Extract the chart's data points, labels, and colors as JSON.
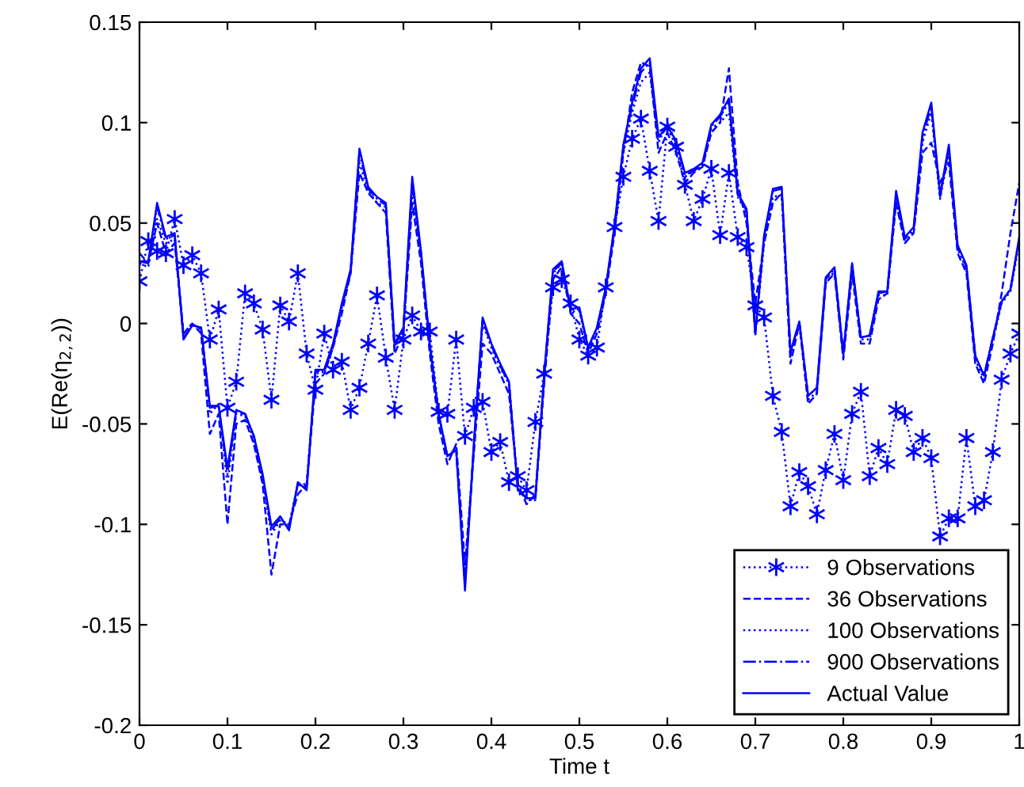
{
  "chart_data": {
    "type": "line",
    "xlabel": "Time t",
    "ylabel": "E(Re(η$_{2,2}$))",
    "xlim": [
      0,
      1
    ],
    "ylim": [
      -0.2,
      0.15
    ],
    "xticks": [
      0,
      0.1,
      0.2,
      0.3,
      0.4,
      0.5,
      0.6,
      0.7,
      0.8,
      0.9,
      1
    ],
    "yticks": [
      -0.2,
      -0.15,
      -0.1,
      -0.05,
      0,
      0.05,
      0.1,
      0.15
    ],
    "grid": false,
    "legend": "bottom right",
    "x": [
      0,
      0.01,
      0.02,
      0.03,
      0.04,
      0.05,
      0.06,
      0.07,
      0.08,
      0.09,
      0.1,
      0.11,
      0.12,
      0.13,
      0.14,
      0.15,
      0.16,
      0.17,
      0.18,
      0.19,
      0.2,
      0.21,
      0.22,
      0.23,
      0.24,
      0.25,
      0.26,
      0.27,
      0.28,
      0.29,
      0.3,
      0.31,
      0.32,
      0.33,
      0.34,
      0.35,
      0.36,
      0.37,
      0.38,
      0.39,
      0.4,
      0.41,
      0.42,
      0.43,
      0.44,
      0.45,
      0.46,
      0.47,
      0.48,
      0.49,
      0.5,
      0.51,
      0.52,
      0.53,
      0.54,
      0.55,
      0.56,
      0.57,
      0.58,
      0.59,
      0.6,
      0.61,
      0.62,
      0.63,
      0.64,
      0.65,
      0.66,
      0.67,
      0.68,
      0.69,
      0.7,
      0.71,
      0.72,
      0.73,
      0.74,
      0.75,
      0.76,
      0.77,
      0.78,
      0.79,
      0.8,
      0.81,
      0.82,
      0.83,
      0.84,
      0.85,
      0.86,
      0.87,
      0.88,
      0.89,
      0.9,
      0.91,
      0.92,
      0.93,
      0.94,
      0.95,
      0.96,
      0.97,
      0.98,
      0.99,
      1
    ],
    "series": [
      {
        "name": "9 Observations",
        "color": "#0000ff",
        "marker": "cross",
        "line_style": "dotted",
        "values": [
          0.021,
          0.041,
          0.036,
          0.035,
          0.052,
          0.029,
          0.034,
          0.025,
          -0.008,
          0.007,
          -0.042,
          -0.029,
          0.015,
          0.01,
          -0.003,
          -0.038,
          0.009,
          0.001,
          0.025,
          -0.015,
          -0.033,
          -0.005,
          -0.023,
          -0.019,
          -0.043,
          -0.032,
          -0.01,
          0.014,
          -0.017,
          -0.043,
          -0.008,
          0.004,
          -0.004,
          -0.004,
          -0.044,
          -0.045,
          -0.008,
          -0.056,
          -0.042,
          -0.039,
          -0.064,
          -0.059,
          -0.079,
          -0.076,
          -0.083,
          -0.049,
          -0.025,
          0.018,
          0.022,
          0.01,
          -0.008,
          -0.016,
          -0.012,
          0.018,
          0.048,
          0.073,
          0.092,
          0.102,
          0.076,
          0.051,
          0.098,
          0.088,
          0.069,
          0.051,
          0.062,
          0.077,
          0.044,
          0.075,
          0.043,
          0.038,
          0.009,
          0.003,
          -0.036,
          -0.054,
          -0.091,
          -0.074,
          -0.081,
          -0.095,
          -0.073,
          -0.055,
          -0.078,
          -0.045,
          -0.034,
          -0.076,
          -0.062,
          -0.07,
          -0.043,
          -0.046,
          -0.064,
          -0.057,
          -0.067,
          -0.106,
          -0.097,
          -0.097,
          -0.057,
          -0.091,
          -0.088,
          -0.064,
          -0.028,
          -0.015,
          -0.005
        ]
      },
      {
        "name": "36 Observations",
        "color": "#0000ff",
        "marker": "none",
        "line_style": "dashed",
        "values": [
          0.035,
          0.03,
          0.05,
          0.035,
          0.04,
          -0.005,
          0.0,
          -0.005,
          -0.055,
          -0.045,
          -0.1,
          -0.05,
          -0.048,
          -0.06,
          -0.08,
          -0.125,
          -0.1,
          -0.1,
          -0.085,
          -0.08,
          -0.03,
          -0.025,
          -0.012,
          0.005,
          0.025,
          0.075,
          0.065,
          0.06,
          0.055,
          -0.015,
          -0.005,
          0.06,
          0.03,
          -0.015,
          -0.05,
          -0.07,
          -0.06,
          -0.12,
          -0.065,
          -0.01,
          -0.015,
          -0.025,
          -0.035,
          -0.08,
          -0.09,
          -0.085,
          -0.03,
          0.022,
          0.028,
          0.005,
          0.0,
          -0.015,
          -0.005,
          0.015,
          0.045,
          0.085,
          0.115,
          0.13,
          0.128,
          0.085,
          0.095,
          0.085,
          0.07,
          0.075,
          0.078,
          0.095,
          0.1,
          0.127,
          0.07,
          0.05,
          0.01,
          0.04,
          0.06,
          0.065,
          -0.02,
          0.0,
          -0.04,
          -0.035,
          0.02,
          0.025,
          -0.018,
          0.025,
          -0.01,
          -0.01,
          0.012,
          0.015,
          0.06,
          0.04,
          0.045,
          0.085,
          0.09,
          0.07,
          0.08,
          0.035,
          0.025,
          -0.02,
          -0.03,
          -0.01,
          0.015,
          0.045,
          0.07
        ]
      },
      {
        "name": "100 Observations",
        "color": "#0000ff",
        "marker": "none",
        "line_style": "dotted",
        "values": [
          0.03,
          0.028,
          0.052,
          0.04,
          0.042,
          -0.005,
          0.0,
          -0.003,
          -0.045,
          -0.04,
          -0.08,
          -0.045,
          -0.046,
          -0.058,
          -0.078,
          -0.105,
          -0.098,
          -0.1,
          -0.08,
          -0.08,
          -0.025,
          -0.024,
          -0.012,
          0.008,
          0.025,
          0.08,
          0.066,
          0.06,
          0.058,
          -0.012,
          -0.004,
          0.065,
          0.033,
          -0.012,
          -0.046,
          -0.066,
          -0.062,
          -0.125,
          -0.062,
          0.0,
          -0.012,
          -0.022,
          -0.03,
          -0.08,
          -0.088,
          -0.088,
          -0.028,
          0.025,
          0.03,
          0.006,
          0.006,
          -0.013,
          -0.003,
          0.016,
          0.047,
          0.085,
          0.105,
          0.12,
          0.125,
          0.09,
          0.1,
          0.09,
          0.073,
          0.076,
          0.078,
          0.097,
          0.1,
          0.105,
          0.063,
          0.055,
          -0.006,
          0.04,
          0.063,
          0.064,
          -0.016,
          0.0,
          -0.038,
          -0.034,
          0.02,
          0.026,
          -0.016,
          0.028,
          -0.008,
          -0.008,
          0.014,
          0.014,
          0.062,
          0.04,
          0.046,
          0.09,
          0.105,
          0.062,
          0.085,
          0.037,
          0.027,
          -0.018,
          -0.028,
          -0.009,
          0.01,
          0.016,
          0.04
        ]
      },
      {
        "name": "900 Observations",
        "color": "#0000ff",
        "marker": "none",
        "line_style": "dashdot",
        "values": [
          0.031,
          0.03,
          0.058,
          0.042,
          0.044,
          -0.007,
          -0.001,
          -0.002,
          -0.042,
          -0.041,
          -0.075,
          -0.044,
          -0.045,
          -0.056,
          -0.076,
          -0.103,
          -0.097,
          -0.102,
          -0.08,
          -0.082,
          -0.024,
          -0.023,
          -0.011,
          0.009,
          0.026,
          0.085,
          0.067,
          0.062,
          0.059,
          -0.011,
          -0.003,
          0.07,
          0.035,
          -0.011,
          -0.045,
          -0.066,
          -0.063,
          -0.13,
          -0.061,
          0.002,
          -0.011,
          -0.021,
          -0.03,
          -0.082,
          -0.087,
          -0.087,
          -0.026,
          0.026,
          0.03,
          0.007,
          0.007,
          -0.012,
          -0.002,
          0.017,
          0.048,
          0.088,
          0.108,
          0.125,
          0.13,
          0.092,
          0.098,
          0.09,
          0.074,
          0.076,
          0.079,
          0.098,
          0.103,
          0.11,
          0.064,
          0.056,
          -0.005,
          0.043,
          0.066,
          0.067,
          -0.015,
          0.001,
          -0.036,
          -0.032,
          0.022,
          0.027,
          -0.015,
          0.029,
          -0.007,
          -0.006,
          0.015,
          0.016,
          0.064,
          0.042,
          0.047,
          0.093,
          0.108,
          0.063,
          0.087,
          0.038,
          0.028,
          -0.016,
          -0.026,
          -0.007,
          0.011,
          0.017,
          0.042
        ]
      },
      {
        "name": "Actual Value",
        "color": "#0000ff",
        "marker": "none",
        "line_style": "solid",
        "values": [
          0.031,
          0.031,
          0.06,
          0.043,
          0.045,
          -0.008,
          -0.001,
          -0.002,
          -0.041,
          -0.041,
          -0.072,
          -0.043,
          -0.045,
          -0.056,
          -0.075,
          -0.101,
          -0.096,
          -0.103,
          -0.079,
          -0.083,
          -0.023,
          -0.023,
          -0.01,
          0.01,
          0.027,
          0.087,
          0.068,
          0.063,
          0.06,
          -0.01,
          -0.002,
          0.073,
          0.036,
          -0.01,
          -0.045,
          -0.066,
          -0.063,
          -0.133,
          -0.06,
          0.003,
          -0.01,
          -0.02,
          -0.029,
          -0.083,
          -0.087,
          -0.087,
          -0.025,
          0.027,
          0.031,
          0.007,
          0.008,
          -0.012,
          -0.002,
          0.018,
          0.049,
          0.089,
          0.11,
          0.127,
          0.132,
          0.093,
          0.098,
          0.091,
          0.075,
          0.077,
          0.08,
          0.099,
          0.104,
          0.112,
          0.065,
          0.057,
          -0.005,
          0.044,
          0.067,
          0.068,
          -0.014,
          0.001,
          -0.036,
          -0.032,
          0.023,
          0.028,
          -0.015,
          0.03,
          -0.007,
          -0.006,
          0.016,
          0.016,
          0.066,
          0.043,
          0.048,
          0.095,
          0.11,
          0.064,
          0.089,
          0.039,
          0.029,
          -0.016,
          -0.026,
          -0.007,
          0.011,
          0.017,
          0.043
        ]
      }
    ]
  }
}
